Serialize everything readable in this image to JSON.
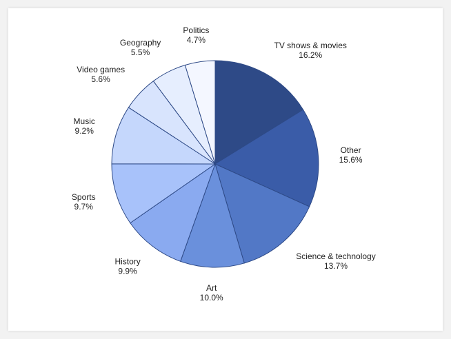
{
  "chart_data": {
    "type": "pie",
    "title": "",
    "categories": [
      "TV shows & movies",
      "Other",
      "Science & technology",
      "Art",
      "History",
      "Sports",
      "Music",
      "Video games",
      "Geography",
      "Politics"
    ],
    "values": [
      16.2,
      15.6,
      13.7,
      10.0,
      9.9,
      9.7,
      9.2,
      5.6,
      5.5,
      4.7
    ],
    "value_labels": [
      "16.2%",
      "15.6%",
      "13.7%",
      "10.0%",
      "9.9%",
      "9.7%",
      "9.2%",
      "5.6%",
      "5.5%",
      "4.7%"
    ],
    "colors": [
      "#2e4a87",
      "#3a5ca8",
      "#5278c6",
      "#6a90dc",
      "#8aaaf0",
      "#a8c2fa",
      "#c5d7fc",
      "#d8e4fd",
      "#e6eefe",
      "#f4f7ff"
    ],
    "stroke_color": "#2e4a87",
    "start_angle": "12 o'clock",
    "direction": "clockwise",
    "legend": "none"
  }
}
